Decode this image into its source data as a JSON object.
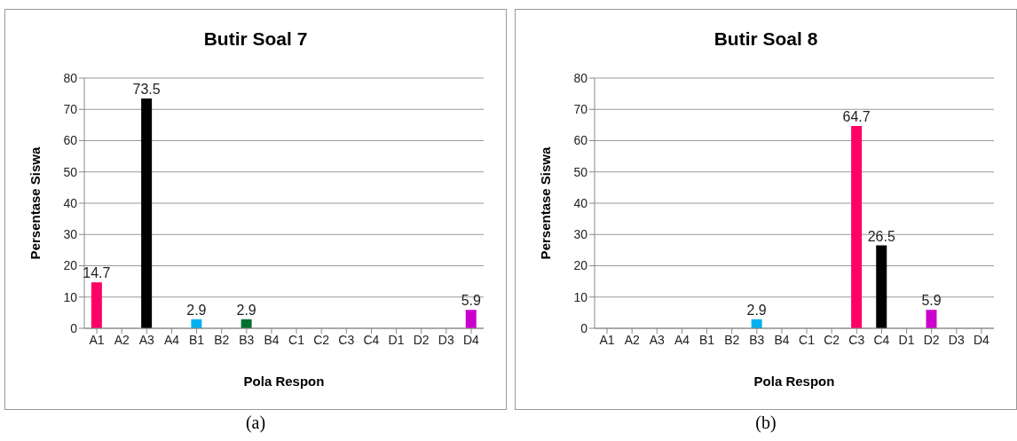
{
  "chart_data": [
    {
      "type": "bar",
      "title": "Butir Soal 7",
      "xlabel": "Pola Respon",
      "ylabel": "Persentase Siswa",
      "categories": [
        "A1",
        "A2",
        "A3",
        "A4",
        "B1",
        "B2",
        "B3",
        "B4",
        "C1",
        "C2",
        "C3",
        "C4",
        "D1",
        "D2",
        "D3",
        "D4"
      ],
      "values": [
        14.7,
        0,
        73.5,
        0,
        2.9,
        0,
        2.9,
        0,
        0,
        0,
        0,
        0,
        0,
        0,
        0,
        5.9
      ],
      "colors": [
        "#ff0066",
        "#ff0066",
        "#000000",
        "#000000",
        "#00b0f0",
        "#00b0f0",
        "#006f32",
        "#006f32",
        "#ff0066",
        "#ff0066",
        "#ff0066",
        "#000000",
        "#cc00cc",
        "#cc00cc",
        "#cc00cc",
        "#cc00cc"
      ],
      "value_labels": [
        "14.7",
        null,
        "73.5",
        null,
        "2.9",
        null,
        "2.9",
        null,
        null,
        null,
        null,
        null,
        null,
        null,
        null,
        "5.9"
      ],
      "ylim": [
        0,
        80
      ],
      "yticks": [
        0,
        10,
        20,
        30,
        40,
        50,
        60,
        70,
        80
      ],
      "grid": "y",
      "annotations": [
        "(a)"
      ]
    },
    {
      "type": "bar",
      "title": "Butir Soal 8",
      "xlabel": "Pola Respon",
      "ylabel": "Persentase Siswa",
      "categories": [
        "A1",
        "A2",
        "A3",
        "A4",
        "B1",
        "B2",
        "B3",
        "B4",
        "C1",
        "C2",
        "C3",
        "C4",
        "D1",
        "D2",
        "D3",
        "D4"
      ],
      "values": [
        0,
        0,
        0,
        0,
        0,
        0,
        2.9,
        0,
        0,
        0,
        64.7,
        26.5,
        0,
        5.9,
        0,
        0
      ],
      "colors": [
        "#ff0066",
        "#ff0066",
        "#000000",
        "#000000",
        "#00b0f0",
        "#00b0f0",
        "#00b0f0",
        "#006f32",
        "#ff0066",
        "#ff0066",
        "#ff0066",
        "#000000",
        "#cc00cc",
        "#cc00cc",
        "#cc00cc",
        "#cc00cc"
      ],
      "value_labels": [
        null,
        null,
        null,
        null,
        null,
        null,
        "2.9",
        null,
        null,
        null,
        "64.7",
        "26.5",
        null,
        "5.9",
        null,
        null
      ],
      "ylim": [
        0,
        80
      ],
      "yticks": [
        0,
        10,
        20,
        30,
        40,
        50,
        60,
        70,
        80
      ],
      "grid": "y",
      "annotations": [
        "(b)"
      ]
    }
  ]
}
